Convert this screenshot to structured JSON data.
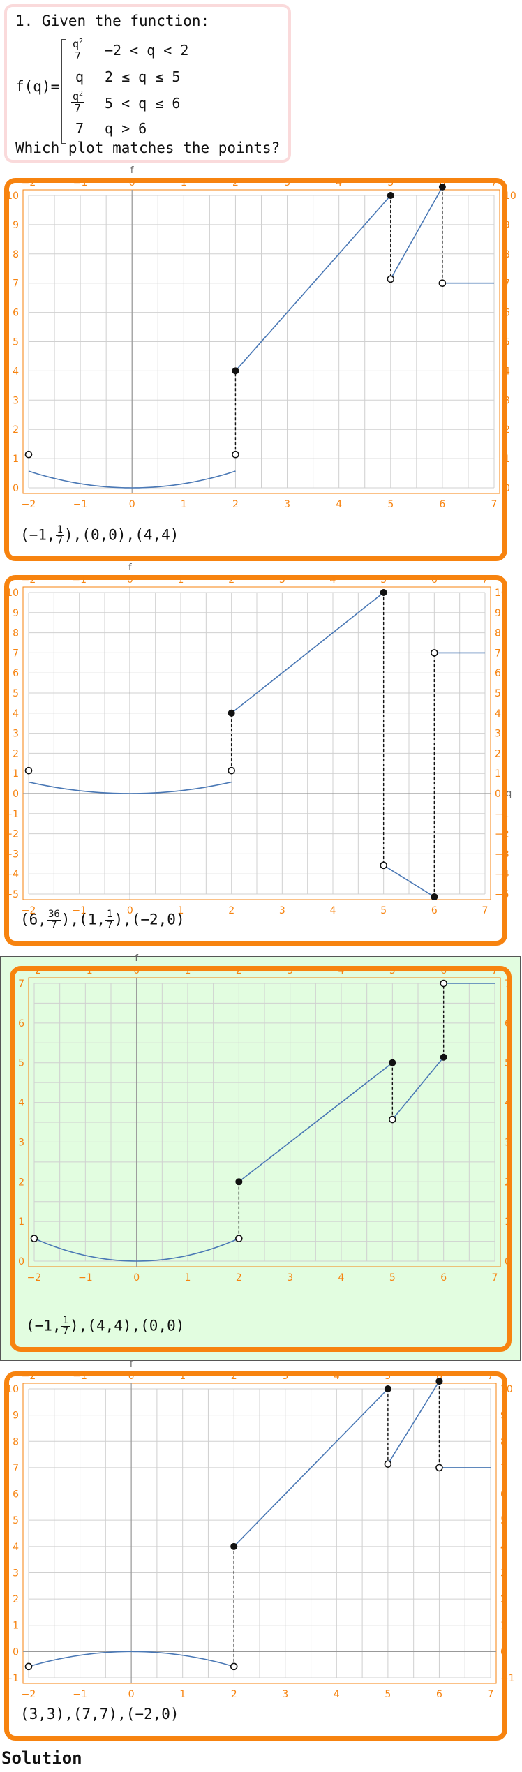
{
  "question": {
    "line1": "1. Given the function:",
    "fname": "f(q)=",
    "pieces": [
      {
        "value_num": "q",
        "value_exp": "2",
        "value_den": "7",
        "condition": "−2 < q < 2"
      },
      {
        "value": "q",
        "condition": "2 ≤ q ≤ 5"
      },
      {
        "value_num": "q",
        "value_exp": "2",
        "value_den": "7",
        "condition": "5 < q ≤ 6"
      },
      {
        "value": "7",
        "condition": "q > 6"
      }
    ],
    "line_last": "Which plot matches the points?"
  },
  "options": [
    {
      "points_label": [
        "(−1,",
        "1|7",
        "),(0,0),(4,4)"
      ]
    },
    {
      "points_label": [
        "(6,",
        "36|7",
        "),(1,",
        "1|7",
        "),(−2,0)"
      ]
    },
    {
      "points_label": [
        "(−1,",
        "1|7",
        "),(4,4),(0,0)"
      ]
    },
    {
      "points_label": [
        "(3,3),(7,7),(−2,0)"
      ]
    }
  ],
  "solution_label": "Solution",
  "colors": {
    "accent": "#f7830f",
    "curve": "#4a78b5",
    "grid": "#d0d0d0",
    "highlight_bg": "#e2fde0",
    "question_border": "#fadadb"
  },
  "chart_data": [
    {
      "type": "line",
      "xlabel": "f",
      "ylabel": "",
      "xlim": [
        -2,
        7
      ],
      "ylim": [
        0,
        10
      ],
      "xticks": [
        -2,
        -1,
        0,
        1,
        2,
        3,
        4,
        5,
        6,
        7
      ],
      "yticks": [
        0,
        1,
        2,
        3,
        4,
        5,
        6,
        7,
        8,
        9,
        10
      ],
      "series": [
        {
          "kind": "curve",
          "fn": "q2over7",
          "from": -2,
          "to": 2
        },
        {
          "kind": "segment",
          "points": [
            [
              2,
              4
            ],
            [
              5,
              10
            ]
          ]
        },
        {
          "kind": "segment",
          "points": [
            [
              5,
              7.14
            ],
            [
              6,
              10.29
            ]
          ]
        },
        {
          "kind": "segment",
          "points": [
            [
              6,
              7
            ],
            [
              7,
              7
            ]
          ]
        }
      ],
      "dashed": [
        [
          [
            2,
            1.14
          ],
          [
            2,
            4
          ]
        ],
        [
          [
            5,
            10
          ],
          [
            5,
            7.14
          ]
        ],
        [
          [
            6,
            10.29
          ],
          [
            6,
            7
          ]
        ]
      ],
      "open_points": [
        [
          -2,
          1.14
        ],
        [
          2,
          1.14
        ],
        [
          5,
          7.14
        ],
        [
          6,
          7
        ]
      ],
      "closed_points": [
        [
          2,
          4
        ],
        [
          5,
          10
        ],
        [
          6,
          10.29
        ]
      ]
    },
    {
      "type": "line",
      "xlabel": "f",
      "ylabel": "q",
      "xlim": [
        -2,
        7
      ],
      "ylim": [
        -5,
        10
      ],
      "xticks": [
        -2,
        -1,
        0,
        1,
        2,
        3,
        4,
        5,
        6,
        7
      ],
      "yticks": [
        -5,
        -4,
        -3,
        -2,
        -1,
        0,
        1,
        2,
        3,
        4,
        5,
        6,
        7,
        8,
        9,
        10
      ],
      "series": [
        {
          "kind": "curve",
          "fn": "q2over7",
          "from": -2,
          "to": 2
        },
        {
          "kind": "segment",
          "points": [
            [
              2,
              4
            ],
            [
              5,
              10
            ]
          ]
        },
        {
          "kind": "segment",
          "points": [
            [
              5,
              -3.57
            ],
            [
              6,
              -5.14
            ]
          ]
        },
        {
          "kind": "segment",
          "points": [
            [
              6,
              7
            ],
            [
              7,
              7
            ]
          ]
        }
      ],
      "dashed": [
        [
          [
            2,
            1.14
          ],
          [
            2,
            4
          ]
        ],
        [
          [
            5,
            10
          ],
          [
            5,
            -3.57
          ]
        ],
        [
          [
            6,
            -5.14
          ],
          [
            6,
            7
          ]
        ]
      ],
      "open_points": [
        [
          -2,
          1.14
        ],
        [
          2,
          1.14
        ],
        [
          5,
          -3.57
        ],
        [
          6,
          7
        ]
      ],
      "closed_points": [
        [
          2,
          4
        ],
        [
          5,
          10
        ],
        [
          6,
          -5.14
        ]
      ]
    },
    {
      "type": "line",
      "xlabel": "f",
      "ylabel": "",
      "xlim": [
        -2,
        7
      ],
      "ylim": [
        0,
        7
      ],
      "xticks": [
        -2,
        -1,
        0,
        1,
        2,
        3,
        4,
        5,
        6,
        7
      ],
      "yticks": [
        0,
        1,
        2,
        3,
        4,
        5,
        6,
        7
      ],
      "series": [
        {
          "kind": "curve",
          "fn": "q2over7",
          "from": -2,
          "to": 2
        },
        {
          "kind": "segment",
          "points": [
            [
              2,
              2
            ],
            [
              5,
              5
            ]
          ]
        },
        {
          "kind": "segment",
          "points": [
            [
              5,
              3.57
            ],
            [
              6,
              5.14
            ]
          ]
        },
        {
          "kind": "segment",
          "points": [
            [
              6,
              7
            ],
            [
              7,
              7
            ]
          ]
        }
      ],
      "dashed": [
        [
          [
            2,
            0.57
          ],
          [
            2,
            2
          ]
        ],
        [
          [
            5,
            5
          ],
          [
            5,
            3.57
          ]
        ],
        [
          [
            6,
            5.14
          ],
          [
            6,
            7
          ]
        ]
      ],
      "open_points": [
        [
          -2,
          0.57
        ],
        [
          2,
          0.57
        ],
        [
          5,
          3.57
        ],
        [
          6,
          7
        ]
      ],
      "closed_points": [
        [
          2,
          2
        ],
        [
          5,
          5
        ],
        [
          6,
          5.14
        ]
      ]
    },
    {
      "type": "line",
      "xlabel": "f",
      "ylabel": "",
      "xlim": [
        -2,
        7
      ],
      "ylim": [
        -1,
        10
      ],
      "xticks": [
        -2,
        -1,
        0,
        1,
        2,
        3,
        4,
        5,
        6,
        7
      ],
      "yticks": [
        -1,
        0,
        1,
        2,
        3,
        4,
        5,
        6,
        7,
        8,
        9,
        10
      ],
      "series": [
        {
          "kind": "curve",
          "fn": "negq2over7",
          "from": -2,
          "to": 2
        },
        {
          "kind": "segment",
          "points": [
            [
              2,
              4
            ],
            [
              5,
              10
            ]
          ]
        },
        {
          "kind": "segment",
          "points": [
            [
              5,
              7.14
            ],
            [
              6,
              10.29
            ]
          ]
        },
        {
          "kind": "segment",
          "points": [
            [
              6,
              7
            ],
            [
              7,
              7
            ]
          ]
        }
      ],
      "dashed": [
        [
          [
            2,
            -0.57
          ],
          [
            2,
            4
          ]
        ],
        [
          [
            5,
            10
          ],
          [
            5,
            7.14
          ]
        ],
        [
          [
            6,
            10.29
          ],
          [
            6,
            7
          ]
        ]
      ],
      "open_points": [
        [
          -2,
          -0.57
        ],
        [
          2,
          -0.57
        ],
        [
          5,
          7.14
        ],
        [
          6,
          7
        ]
      ],
      "closed_points": [
        [
          2,
          4
        ],
        [
          5,
          10
        ],
        [
          6,
          10.29
        ]
      ]
    }
  ]
}
